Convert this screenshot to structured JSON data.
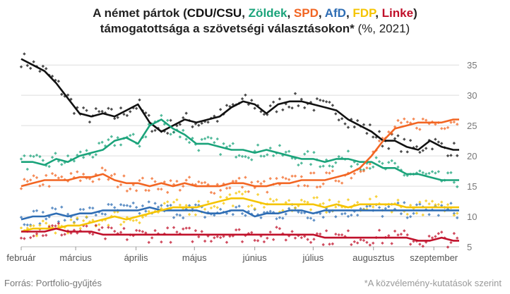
{
  "title": {
    "prefix": "A német pártok (",
    "parties": [
      {
        "label": "CDU/CSU",
        "color": "#111111"
      },
      {
        "label": "Zöldek",
        "color": "#1aa37a"
      },
      {
        "label": "SPD",
        "color": "#f26522"
      },
      {
        "label": "AfD",
        "color": "#2e6db4"
      },
      {
        "label": "FDP",
        "color": "#f5c400"
      },
      {
        "label": "Linke",
        "color": "#c0102a"
      }
    ],
    "separator": ", ",
    "suffix": ")",
    "line2_bold": "támogatottsága a szövetségi választásokon*",
    "line2_rest": " (%, 2021)"
  },
  "footer": {
    "source": "Forrás: Portfolio-gyűjtés",
    "note": "*A közvélemény-kutatások szerint"
  },
  "chart_data": {
    "type": "line",
    "x_unit": "days since 2021-02-01",
    "x_range": [
      0,
      225
    ],
    "x_ticks": [
      {
        "label": "február",
        "x": 0
      },
      {
        "label": "március",
        "x": 28
      },
      {
        "label": "április",
        "x": 59
      },
      {
        "label": "május",
        "x": 89
      },
      {
        "label": "június",
        "x": 120
      },
      {
        "label": "július",
        "x": 150
      },
      {
        "label": "augusztus",
        "x": 181
      },
      {
        "label": "szeptember",
        "x": 212
      }
    ],
    "ylim": [
      5,
      37
    ],
    "y_ticks": [
      5,
      10,
      15,
      20,
      25,
      30,
      35
    ],
    "grid": true,
    "series": [
      {
        "name": "CDU/CSU",
        "color": "#111111",
        "x": [
          0,
          6,
          12,
          18,
          24,
          30,
          36,
          42,
          48,
          54,
          60,
          66,
          72,
          78,
          84,
          90,
          96,
          102,
          108,
          114,
          120,
          126,
          132,
          138,
          144,
          150,
          156,
          162,
          168,
          174,
          180,
          186,
          192,
          198,
          204,
          210,
          216,
          222,
          225
        ],
        "values": [
          36,
          35,
          34,
          32,
          29.5,
          27,
          26.5,
          27,
          26.5,
          27.5,
          28.5,
          25.5,
          24,
          25,
          26,
          25.5,
          26,
          26.5,
          28,
          29,
          28.5,
          27,
          28.5,
          29,
          29,
          28.5,
          28,
          27.5,
          26,
          25,
          24,
          22.5,
          22.5,
          21.5,
          21,
          22.5,
          21.5,
          21,
          21
        ]
      },
      {
        "name": "Zöldek",
        "color": "#1aa37a",
        "x": [
          0,
          6,
          12,
          18,
          24,
          30,
          36,
          42,
          48,
          54,
          60,
          66,
          72,
          78,
          84,
          90,
          96,
          102,
          108,
          114,
          120,
          126,
          132,
          138,
          144,
          150,
          156,
          162,
          168,
          174,
          180,
          186,
          192,
          198,
          204,
          210,
          216,
          222,
          225
        ],
        "values": [
          19,
          19,
          18.5,
          19.5,
          19,
          20,
          20.5,
          21,
          22.5,
          23,
          22,
          25,
          26,
          24.5,
          23.5,
          22,
          22,
          21.5,
          21,
          21,
          20.5,
          21,
          20.5,
          20,
          19.5,
          19.5,
          19,
          19.5,
          19.5,
          19,
          19,
          18,
          18,
          17,
          17,
          16.5,
          16,
          16,
          16
        ]
      },
      {
        "name": "SPD",
        "color": "#f26522",
        "x": [
          0,
          6,
          12,
          18,
          24,
          30,
          36,
          42,
          48,
          54,
          60,
          66,
          72,
          78,
          84,
          90,
          96,
          102,
          108,
          114,
          120,
          126,
          132,
          138,
          144,
          150,
          156,
          162,
          168,
          174,
          180,
          186,
          192,
          198,
          204,
          210,
          216,
          222,
          225
        ],
        "values": [
          15,
          15.5,
          16,
          16,
          16,
          16.5,
          16.5,
          17,
          16,
          15.5,
          15.5,
          15,
          15.5,
          15,
          15.5,
          15,
          15,
          15,
          15.5,
          15.5,
          15,
          15,
          15.5,
          15.5,
          16,
          16,
          16,
          16.5,
          17,
          18,
          20,
          22.5,
          24.5,
          25,
          25.5,
          25.5,
          25.5,
          26,
          26
        ]
      },
      {
        "name": "AfD",
        "color": "#2e6db4",
        "x": [
          0,
          6,
          12,
          18,
          24,
          30,
          36,
          42,
          48,
          54,
          60,
          66,
          72,
          78,
          84,
          90,
          96,
          102,
          108,
          114,
          120,
          126,
          132,
          138,
          144,
          150,
          156,
          162,
          168,
          174,
          180,
          186,
          192,
          198,
          204,
          210,
          216,
          222,
          225
        ],
        "values": [
          9.5,
          10,
          10,
          10.5,
          10,
          10.5,
          10.5,
          11,
          11,
          11,
          11,
          11.5,
          11,
          11,
          11,
          11,
          10.5,
          10.5,
          11,
          11,
          10,
          10.5,
          10.5,
          11,
          11,
          10.5,
          11,
          11,
          11,
          11,
          11,
          11,
          11,
          11,
          11,
          11,
          11,
          11,
          11
        ]
      },
      {
        "name": "FDP",
        "color": "#f5c400",
        "x": [
          0,
          6,
          12,
          18,
          24,
          30,
          36,
          42,
          48,
          54,
          60,
          66,
          72,
          78,
          84,
          90,
          96,
          102,
          108,
          114,
          120,
          126,
          132,
          138,
          144,
          150,
          156,
          162,
          168,
          174,
          180,
          186,
          192,
          198,
          204,
          210,
          216,
          222,
          225
        ],
        "values": [
          7.5,
          8,
          8,
          8,
          8.5,
          8.5,
          9,
          9.5,
          10,
          9.5,
          10,
          10.5,
          11,
          11.5,
          11.5,
          11.5,
          12,
          12.5,
          13,
          13,
          12.5,
          12,
          12,
          12,
          12,
          12,
          11.5,
          12,
          11.5,
          12,
          12,
          12,
          12,
          11.5,
          11.5,
          11.5,
          11.5,
          11.5,
          11.5
        ]
      },
      {
        "name": "Linke",
        "color": "#c0102a",
        "x": [
          0,
          6,
          12,
          18,
          24,
          30,
          36,
          42,
          48,
          54,
          60,
          66,
          72,
          78,
          84,
          90,
          96,
          102,
          108,
          114,
          120,
          126,
          132,
          138,
          144,
          150,
          156,
          162,
          168,
          174,
          180,
          186,
          192,
          198,
          204,
          210,
          216,
          222,
          225
        ],
        "values": [
          7.5,
          7.5,
          7.5,
          8,
          7.5,
          7.5,
          7.5,
          7,
          7,
          7,
          7,
          7,
          7,
          7,
          7,
          7,
          7,
          7,
          7,
          7,
          7,
          7,
          7,
          7,
          7,
          7,
          6.5,
          6.5,
          6.5,
          6.5,
          6.5,
          6.5,
          6.5,
          6.5,
          6,
          6,
          6.5,
          6,
          6
        ]
      }
    ]
  }
}
